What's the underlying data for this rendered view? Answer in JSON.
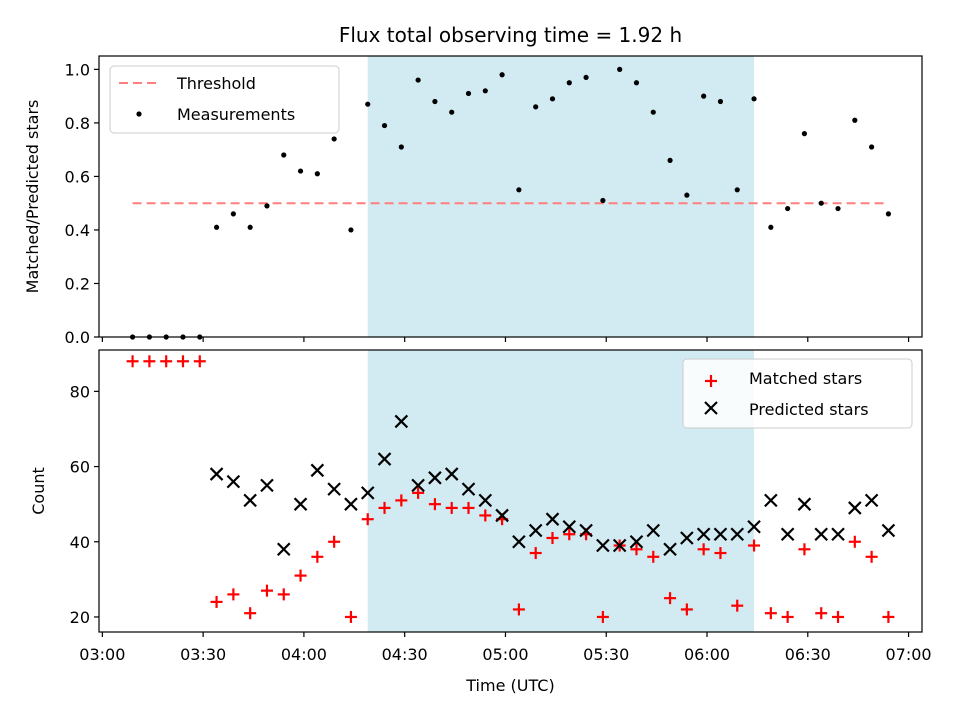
{
  "colors": {
    "threshold": "#ff7f7f",
    "measurement": "#000000",
    "matched": "#ff0000",
    "predicted": "#000000",
    "shade": "#add8e6"
  },
  "chart_data": [
    {
      "type": "scatter",
      "title": "Flux total observing time = 1.92 h",
      "ylabel": "Matched/Predicted stars",
      "xlabel": "",
      "xlim": [
        "02:59",
        "07:04"
      ],
      "ylim": [
        0,
        1.05
      ],
      "yticks": [
        "0.0",
        "0.2",
        "0.4",
        "0.6",
        "0.8",
        "1.0"
      ],
      "grid": false,
      "legend": "top-left",
      "shaded_interval": [
        "04:19",
        "06:14"
      ],
      "threshold": {
        "name": "Threshold",
        "value": 0.5,
        "x_start": "03:09",
        "x_end": "06:54"
      },
      "series": [
        {
          "name": "Measurements",
          "x": [
            "03:09",
            "03:14",
            "03:19",
            "03:24",
            "03:29",
            "03:34",
            "03:39",
            "03:44",
            "03:49",
            "03:54",
            "03:59",
            "04:04",
            "04:09",
            "04:14",
            "04:19",
            "04:24",
            "04:29",
            "04:34",
            "04:39",
            "04:44",
            "04:49",
            "04:54",
            "04:59",
            "05:04",
            "05:09",
            "05:14",
            "05:19",
            "05:24",
            "05:29",
            "05:34",
            "05:39",
            "05:44",
            "05:49",
            "05:54",
            "05:59",
            "06:04",
            "06:09",
            "06:14",
            "06:19",
            "06:24",
            "06:29",
            "06:34",
            "06:39",
            "06:44",
            "06:49",
            "06:54"
          ],
          "y": [
            0,
            0,
            0,
            0,
            0,
            0.41,
            0.46,
            0.41,
            0.49,
            0.68,
            0.62,
            0.61,
            0.74,
            0.4,
            0.87,
            0.79,
            0.71,
            0.96,
            0.88,
            0.84,
            0.91,
            0.92,
            0.98,
            0.55,
            0.86,
            0.89,
            0.95,
            0.97,
            0.51,
            1.0,
            0.95,
            0.84,
            0.66,
            0.53,
            0.9,
            0.88,
            0.55,
            0.89,
            0.41,
            0.48,
            0.76,
            0.5,
            0.48,
            0.81,
            0.71,
            0.46
          ]
        }
      ]
    },
    {
      "type": "scatter",
      "title": "",
      "ylabel": "Count",
      "xlabel": "Time (UTC)",
      "xlim": [
        "02:59",
        "07:04"
      ],
      "ylim": [
        16,
        91
      ],
      "yticks": [
        "20",
        "40",
        "60",
        "80"
      ],
      "xticks": [
        "03:00",
        "03:30",
        "04:00",
        "04:30",
        "05:00",
        "05:30",
        "06:00",
        "06:30",
        "07:00"
      ],
      "grid": false,
      "legend": "top-right",
      "shaded_interval": [
        "04:19",
        "06:14"
      ],
      "series": [
        {
          "name": "Matched stars",
          "x": [
            "03:09",
            "03:14",
            "03:19",
            "03:24",
            "03:29",
            "03:34",
            "03:39",
            "03:44",
            "03:49",
            "03:54",
            "03:59",
            "04:04",
            "04:09",
            "04:14",
            "04:19",
            "04:24",
            "04:29",
            "04:34",
            "04:39",
            "04:44",
            "04:49",
            "04:54",
            "04:59",
            "05:04",
            "05:09",
            "05:14",
            "05:19",
            "05:24",
            "05:29",
            "05:34",
            "05:39",
            "05:44",
            "05:49",
            "05:54",
            "05:59",
            "06:04",
            "06:09",
            "06:14",
            "06:19",
            "06:24",
            "06:29",
            "06:34",
            "06:39",
            "06:44",
            "06:49",
            "06:54"
          ],
          "y": [
            88,
            88,
            88,
            88,
            88,
            24,
            26,
            21,
            27,
            26,
            31,
            36,
            40,
            20,
            46,
            49,
            51,
            53,
            50,
            49,
            49,
            47,
            46,
            22,
            37,
            41,
            42,
            42,
            20,
            39,
            38,
            36,
            25,
            22,
            38,
            37,
            23,
            39,
            21,
            20,
            38,
            21,
            20,
            40,
            36,
            20
          ]
        },
        {
          "name": "Predicted stars",
          "x": [
            "03:34",
            "03:39",
            "03:44",
            "03:49",
            "03:54",
            "03:59",
            "04:04",
            "04:09",
            "04:14",
            "04:19",
            "04:24",
            "04:29",
            "04:34",
            "04:39",
            "04:44",
            "04:49",
            "04:54",
            "04:59",
            "05:04",
            "05:09",
            "05:14",
            "05:19",
            "05:24",
            "05:29",
            "05:34",
            "05:39",
            "05:44",
            "05:49",
            "05:54",
            "05:59",
            "06:04",
            "06:09",
            "06:14",
            "06:19",
            "06:24",
            "06:29",
            "06:34",
            "06:39",
            "06:44",
            "06:49",
            "06:54"
          ],
          "y": [
            58,
            56,
            51,
            55,
            38,
            50,
            59,
            54,
            50,
            53,
            62,
            72,
            55,
            57,
            58,
            54,
            51,
            47,
            40,
            43,
            46,
            44,
            43,
            39,
            39,
            40,
            43,
            38,
            41,
            42,
            42,
            42,
            44,
            51,
            42,
            50,
            42,
            42,
            49,
            51,
            43
          ]
        }
      ]
    }
  ]
}
